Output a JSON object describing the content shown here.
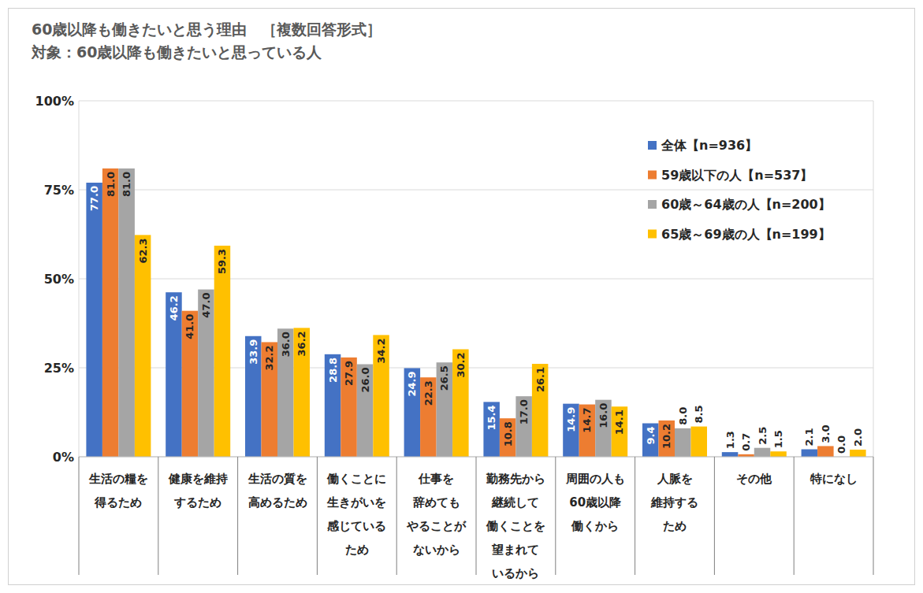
{
  "chart_data": {
    "type": "bar",
    "title": "60歳以降も働きたいと思う理由　［複数回答形式］",
    "subtitle": "対象：60歳以降も働きたいと思っている人",
    "categories": [
      "生活の糧を\n得るため",
      "健康を維持\nするため",
      "生活の質を\n高めるため",
      "働くことに\n生きがいを\n感じている\nため",
      "仕事を\n辞めても\nやることが\nないから",
      "勤務先から\n継続して\n働くことを\n望まれて\nいるから",
      "周囲の人も\n60歳以降\n働くから",
      "人脈を\n維持する\nため",
      "その他",
      "特になし"
    ],
    "series": [
      {
        "name": "全体【n=936】",
        "color": "#4472c4",
        "values": [
          77.0,
          46.2,
          33.9,
          28.8,
          24.9,
          15.4,
          14.9,
          9.4,
          1.3,
          2.1
        ],
        "value_labels": [
          "77.0",
          "46.2",
          "33.9",
          "28.8",
          "24.9",
          "15.4",
          "14.9",
          "9.4",
          "1.3",
          "2.1"
        ]
      },
      {
        "name": "59歳以下の人【n=537】",
        "color": "#ed7d31",
        "values": [
          81.0,
          41.0,
          32.2,
          27.9,
          22.3,
          10.8,
          14.7,
          10.2,
          0.7,
          3.0
        ],
        "value_labels": [
          "81.0",
          "41.0",
          "32.2",
          "27.9",
          "22.3",
          "10.8",
          "14.7",
          "10.2",
          "0.7",
          "3.0"
        ]
      },
      {
        "name": "60歳～64歳の人【n=200】",
        "color": "#a5a5a5",
        "values": [
          81.0,
          47.0,
          36.0,
          26.0,
          26.5,
          17.0,
          16.0,
          8.0,
          2.5,
          0.0
        ],
        "value_labels": [
          "81.0",
          "47.0",
          "36.0",
          "26.0",
          "26.5",
          "17.0",
          "16.0",
          "8.0",
          "2.5",
          "0.0"
        ]
      },
      {
        "name": "65歳～69歳の人【n=199】",
        "color": "#ffc000",
        "values": [
          62.3,
          59.3,
          36.2,
          34.2,
          30.2,
          26.1,
          14.1,
          8.5,
          1.5,
          2.0
        ],
        "value_labels": [
          "62.3",
          "59.3",
          "36.2",
          "34.2",
          "30.2",
          "26.1",
          "14.1",
          "8.5",
          "1.5",
          "2.0"
        ]
      }
    ],
    "ylim": [
      0,
      100
    ],
    "yticks": [
      {
        "value": 0,
        "label": "0%"
      },
      {
        "value": 25,
        "label": "25%"
      },
      {
        "value": 50,
        "label": "50%"
      },
      {
        "value": 75,
        "label": "75%"
      },
      {
        "value": 100,
        "label": "100%"
      }
    ],
    "grid": true,
    "legend": "top-right",
    "data_labels": true
  }
}
